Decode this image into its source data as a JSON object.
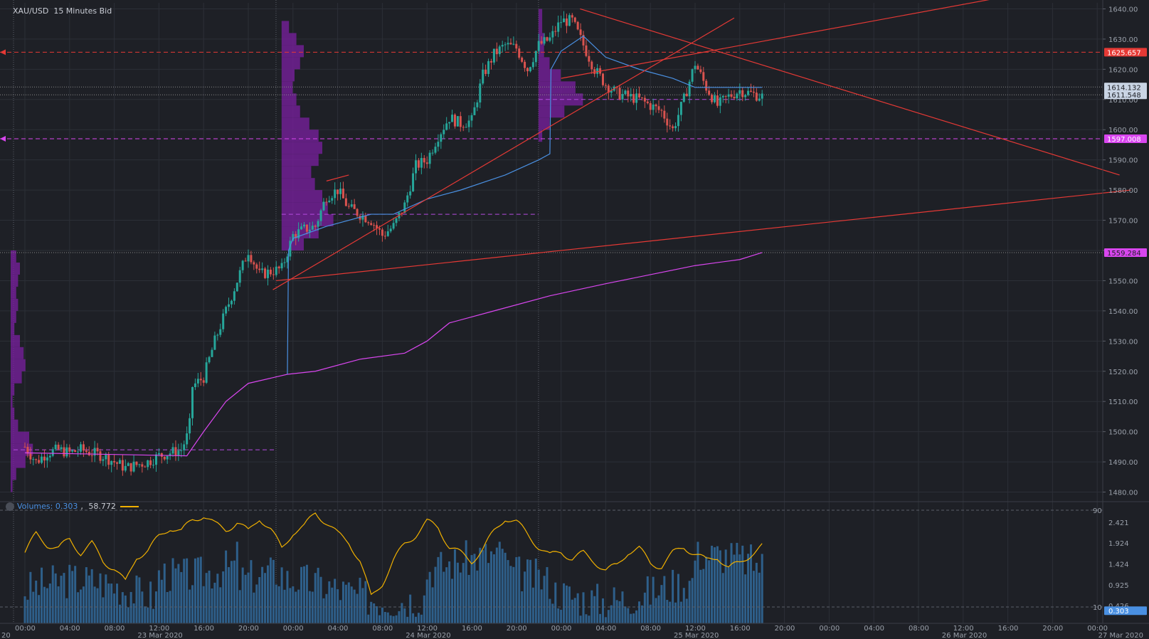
{
  "instrument_title": "XAU/USD  15 Minutes Bid",
  "volume_legend": {
    "label": "Volumes: 0.303",
    "separator": ", ",
    "value2": "58.772"
  },
  "colors": {
    "background": "#1e2026",
    "grid": "#2c2f37",
    "bull": "#26a69a",
    "bear": "#d9534f",
    "trendline": "#e53935",
    "vwap": "#d946ef",
    "blue_line": "#4a90e2",
    "profile": "#7b1fa2",
    "volume_bar": "#2e5f8a",
    "oscillator": "#f0b000",
    "axis_text": "#9aa0aa"
  },
  "chart_data": {
    "type": "candlestick",
    "title": "XAU/USD  15 Minutes Bid",
    "ylim": [
      1478,
      1642
    ],
    "y_ticks": [
      "1640.00",
      "1630.00",
      "1620.00",
      "1610.00",
      "1600.00",
      "1590.00",
      "1580.00",
      "1570.00",
      "1560.00",
      "1550.00",
      "1540.00",
      "1530.00",
      "1520.00",
      "1510.00",
      "1500.00",
      "1490.00",
      "1480.00"
    ],
    "y_tick_values": [
      1640,
      1630,
      1620,
      1610,
      1600,
      1590,
      1580,
      1570,
      1560,
      1550,
      1540,
      1530,
      1520,
      1510,
      1500,
      1490,
      1480
    ],
    "x_time_labels": [
      {
        "t": 0,
        "label": "00:00"
      },
      {
        "t": 4,
        "label": "04:00"
      },
      {
        "t": 8,
        "label": "08:00"
      },
      {
        "t": 12,
        "label": "12:00"
      },
      {
        "t": 16,
        "label": "16:00"
      },
      {
        "t": 20,
        "label": "20:00"
      },
      {
        "t": 24,
        "label": "00:00"
      },
      {
        "t": 28,
        "label": "04:00"
      },
      {
        "t": 32,
        "label": "08:00"
      },
      {
        "t": 36,
        "label": "12:00"
      },
      {
        "t": 40,
        "label": "16:00"
      },
      {
        "t": 44,
        "label": "20:00"
      },
      {
        "t": 48,
        "label": "00:00"
      },
      {
        "t": 52,
        "label": "04:00"
      },
      {
        "t": 56,
        "label": "08:00"
      },
      {
        "t": 60,
        "label": "12:00"
      },
      {
        "t": 64,
        "label": "16:00"
      },
      {
        "t": 68,
        "label": "20:00"
      },
      {
        "t": 72,
        "label": "00:00"
      },
      {
        "t": 76,
        "label": "04:00"
      },
      {
        "t": 80,
        "label": "08:00"
      },
      {
        "t": 84,
        "label": "12:00"
      },
      {
        "t": 88,
        "label": "16:00"
      },
      {
        "t": 92,
        "label": "20:00"
      },
      {
        "t": 96,
        "label": "00:00"
      }
    ],
    "x_date_labels": [
      {
        "t": -1,
        "label": "20"
      },
      {
        "t": 12,
        "label": "23 Mar 2020"
      },
      {
        "t": 36,
        "label": "24 Mar 2020"
      },
      {
        "t": 60,
        "label": "25 Mar 2020"
      },
      {
        "t": 84,
        "label": "26 Mar 2020"
      },
      {
        "t": 98,
        "label": "27 Mar 2020"
      }
    ],
    "session_separators": [
      0,
      23.5,
      47
    ],
    "price_path": [
      [
        0,
        1495
      ],
      [
        1,
        1490
      ],
      [
        2,
        1493
      ],
      [
        3,
        1494
      ],
      [
        4,
        1493
      ],
      [
        5,
        1494
      ],
      [
        6,
        1493
      ],
      [
        7,
        1492
      ],
      [
        8,
        1490
      ],
      [
        9,
        1488
      ],
      [
        10,
        1489
      ],
      [
        11,
        1490
      ],
      [
        12,
        1492
      ],
      [
        13,
        1493
      ],
      [
        14,
        1494
      ],
      [
        14.7,
        1500
      ],
      [
        15,
        1515
      ],
      [
        16,
        1518
      ],
      [
        17,
        1530
      ],
      [
        18,
        1540
      ],
      [
        19,
        1550
      ],
      [
        20,
        1560
      ],
      [
        21,
        1552
      ],
      [
        22,
        1553
      ],
      [
        23,
        1554
      ],
      [
        24,
        1565
      ],
      [
        25,
        1567
      ],
      [
        26,
        1568
      ],
      [
        27,
        1578
      ],
      [
        28,
        1580
      ],
      [
        29,
        1574
      ],
      [
        30,
        1572
      ],
      [
        31,
        1570
      ],
      [
        32,
        1565
      ],
      [
        33,
        1568
      ],
      [
        34,
        1575
      ],
      [
        35,
        1588
      ],
      [
        36,
        1590
      ],
      [
        37,
        1598
      ],
      [
        38,
        1604
      ],
      [
        39,
        1602
      ],
      [
        40,
        1603
      ],
      [
        41,
        1618
      ],
      [
        42,
        1625
      ],
      [
        43,
        1628
      ],
      [
        44,
        1627
      ],
      [
        45,
        1620
      ],
      [
        46,
        1628
      ],
      [
        47,
        1630
      ],
      [
        48,
        1636
      ],
      [
        49,
        1636
      ],
      [
        50,
        1628
      ],
      [
        51,
        1620
      ],
      [
        52,
        1615
      ],
      [
        53,
        1612
      ],
      [
        54,
        1611
      ],
      [
        55,
        1610
      ],
      [
        56,
        1608
      ],
      [
        57,
        1606
      ],
      [
        58,
        1600
      ],
      [
        59,
        1610
      ],
      [
        60,
        1622
      ],
      [
        61,
        1614
      ],
      [
        62,
        1608
      ],
      [
        63,
        1611
      ],
      [
        64,
        1613
      ],
      [
        65,
        1612
      ],
      [
        66,
        1611
      ]
    ],
    "vwap_lower": [
      [
        0,
        1493
      ],
      [
        14.5,
        1492
      ],
      [
        16,
        1500
      ],
      [
        18,
        1510
      ],
      [
        20,
        1516
      ],
      [
        23.5,
        1519
      ],
      [
        26,
        1520
      ],
      [
        30,
        1524
      ],
      [
        34,
        1526
      ],
      [
        36,
        1530
      ],
      [
        38,
        1536
      ],
      [
        42,
        1540
      ],
      [
        47,
        1545
      ],
      [
        52,
        1549
      ],
      [
        56,
        1552
      ],
      [
        60,
        1555
      ],
      [
        64,
        1557
      ],
      [
        66,
        1559.3
      ]
    ],
    "blue_line": [
      [
        23.5,
        1519
      ],
      [
        23.6,
        1560
      ],
      [
        24,
        1564
      ],
      [
        27,
        1568
      ],
      [
        31,
        1572
      ],
      [
        33,
        1572
      ],
      [
        36,
        1577
      ],
      [
        39,
        1580
      ],
      [
        43,
        1585
      ],
      [
        46,
        1590
      ],
      [
        47,
        1592
      ],
      [
        47.1,
        1620
      ],
      [
        48,
        1626
      ],
      [
        50,
        1631
      ],
      [
        52,
        1624
      ],
      [
        55,
        1620
      ],
      [
        58,
        1617
      ],
      [
        60,
        1614
      ],
      [
        63,
        1614
      ],
      [
        66,
        1614
      ]
    ],
    "trend_lines": [
      [
        [
          22.2,
          1547
        ],
        [
          63.5,
          1637
        ]
      ],
      [
        [
          22.5,
          1550
        ],
        [
          99,
          1580
        ]
      ],
      [
        [
          49.7,
          1640
        ],
        [
          98,
          1585
        ]
      ],
      [
        [
          48,
          1617
        ],
        [
          98,
          1651
        ]
      ],
      [
        [
          27,
          1583
        ],
        [
          29,
          1585
        ]
      ]
    ],
    "horizontal_levels": [
      {
        "value": 1625.657,
        "label": "1625.657",
        "color": "#e53935",
        "style": "dashed"
      },
      {
        "value": 1597.008,
        "label": "1597.008",
        "color": "#d946ef",
        "style": "dashed"
      },
      {
        "value": 1614.132,
        "label": "1614.132",
        "color": "#888888",
        "style": "dotted"
      },
      {
        "value": 1611.548,
        "label": "1611.548",
        "color": "#888888",
        "style": "dotted"
      },
      {
        "value": 1559.284,
        "label": "1559.284",
        "color": "#888888",
        "style": "dotted"
      }
    ],
    "poc_segments": [
      {
        "from": 0,
        "to": 23.5,
        "value": 1494
      },
      {
        "from": 24,
        "to": 47,
        "value": 1572
      },
      {
        "from": 47,
        "to": 66,
        "value": 1610
      }
    ],
    "volume_profiles": [
      {
        "t0": 0,
        "bins": [
          [
            1482,
            1
          ],
          [
            1486,
            3
          ],
          [
            1490,
            8
          ],
          [
            1494,
            12
          ],
          [
            1498,
            10
          ],
          [
            1502,
            4
          ],
          [
            1506,
            2
          ],
          [
            1510,
            1
          ],
          [
            1514,
            2
          ],
          [
            1518,
            6
          ],
          [
            1522,
            8
          ],
          [
            1526,
            7
          ],
          [
            1530,
            5
          ],
          [
            1534,
            2
          ],
          [
            1538,
            3
          ],
          [
            1542,
            4
          ],
          [
            1546,
            3
          ],
          [
            1550,
            4
          ],
          [
            1554,
            5
          ],
          [
            1558,
            3
          ]
        ]
      },
      {
        "t0": 24,
        "bins": [
          [
            1562,
            12
          ],
          [
            1566,
            20
          ],
          [
            1570,
            28
          ],
          [
            1574,
            25
          ],
          [
            1578,
            22
          ],
          [
            1582,
            18
          ],
          [
            1586,
            16
          ],
          [
            1590,
            20
          ],
          [
            1594,
            22
          ],
          [
            1598,
            20
          ],
          [
            1602,
            15
          ],
          [
            1606,
            10
          ],
          [
            1610,
            8
          ],
          [
            1614,
            6
          ],
          [
            1618,
            7
          ],
          [
            1622,
            10
          ],
          [
            1626,
            12
          ],
          [
            1630,
            8
          ],
          [
            1634,
            4
          ]
        ]
      },
      {
        "t0": 47,
        "bins": [
          [
            1598,
            2
          ],
          [
            1602,
            6
          ],
          [
            1606,
            14
          ],
          [
            1610,
            24
          ],
          [
            1614,
            20
          ],
          [
            1618,
            12
          ],
          [
            1622,
            6
          ],
          [
            1626,
            3
          ],
          [
            1630,
            3
          ],
          [
            1634,
            2
          ],
          [
            1638,
            2
          ]
        ]
      }
    ],
    "volume_ticks": [
      "2.421",
      "1.924",
      "1.424",
      "0.925",
      "0.426"
    ],
    "volume_tick_values": [
      2.421,
      1.924,
      1.424,
      0.925,
      0.426
    ],
    "volume_last": "0.303",
    "oscillator_levels": [
      "90",
      "10"
    ],
    "oscillator_path": [
      [
        0,
        55
      ],
      [
        1,
        70
      ],
      [
        2,
        62
      ],
      [
        3,
        58
      ],
      [
        4,
        66
      ],
      [
        5,
        55
      ],
      [
        6,
        62
      ],
      [
        7,
        48
      ],
      [
        8,
        42
      ],
      [
        9,
        30
      ],
      [
        10,
        52
      ],
      [
        11,
        56
      ],
      [
        12,
        68
      ],
      [
        13,
        76
      ],
      [
        14,
        72
      ],
      [
        15,
        82
      ],
      [
        16,
        86
      ],
      [
        17,
        78
      ],
      [
        18,
        74
      ],
      [
        19,
        80
      ],
      [
        20,
        72
      ],
      [
        21,
        84
      ],
      [
        22,
        74
      ],
      [
        23,
        58
      ],
      [
        24,
        72
      ],
      [
        25,
        76
      ],
      [
        26,
        88
      ],
      [
        27,
        80
      ],
      [
        28,
        70
      ],
      [
        29,
        64
      ],
      [
        30,
        48
      ],
      [
        31,
        18
      ],
      [
        32,
        30
      ],
      [
        33,
        48
      ],
      [
        34,
        62
      ],
      [
        35,
        70
      ],
      [
        36,
        80
      ],
      [
        37,
        76
      ],
      [
        38,
        60
      ],
      [
        39,
        54
      ],
      [
        40,
        48
      ],
      [
        41,
        58
      ],
      [
        42,
        72
      ],
      [
        43,
        84
      ],
      [
        44,
        80
      ],
      [
        45,
        70
      ],
      [
        46,
        60
      ],
      [
        47,
        52
      ],
      [
        48,
        56
      ],
      [
        49,
        50
      ],
      [
        50,
        54
      ],
      [
        51,
        48
      ],
      [
        52,
        40
      ],
      [
        53,
        44
      ],
      [
        54,
        56
      ],
      [
        55,
        58
      ],
      [
        56,
        46
      ],
      [
        57,
        44
      ],
      [
        58,
        54
      ],
      [
        59,
        60
      ],
      [
        60,
        54
      ],
      [
        61,
        48
      ],
      [
        62,
        52
      ],
      [
        63,
        42
      ],
      [
        64,
        46
      ],
      [
        65,
        54
      ],
      [
        66,
        60
      ]
    ]
  }
}
